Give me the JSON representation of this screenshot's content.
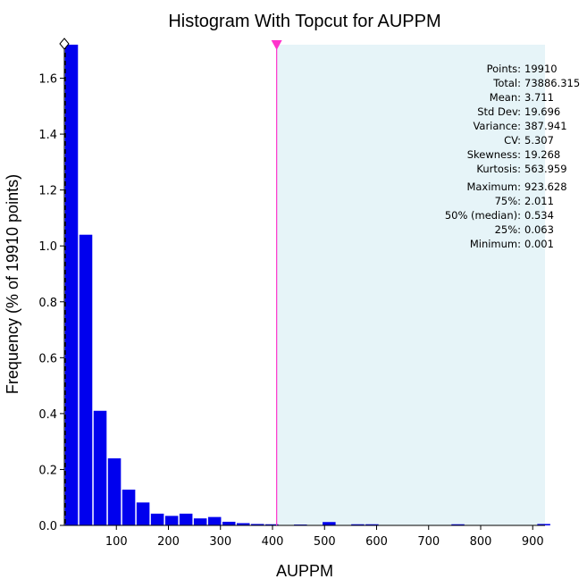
{
  "chart_data": {
    "type": "bar",
    "title": "Histogram With Topcut for AUPPM",
    "xlabel": "AUPPM",
    "ylabel": "Frequency (% of 19910 points)",
    "xlim": [
      0,
      923.628
    ],
    "ylim": [
      0,
      1.72
    ],
    "x_ticks": [
      100,
      200,
      300,
      400,
      500,
      600,
      700,
      800,
      900
    ],
    "y_ticks": [
      0.0,
      0.2,
      0.4,
      0.6,
      0.8,
      1.0,
      1.2,
      1.4,
      1.6
    ],
    "y_tick_labels": [
      "0.0",
      "0.2",
      "0.4",
      "0.6",
      "0.8",
      "1.0",
      "1.2",
      "1.4",
      "1.6"
    ],
    "bin_width": 27.5,
    "bins": [
      {
        "x0": 0,
        "value": 1.72
      },
      {
        "x0": 27.5,
        "value": 1.04
      },
      {
        "x0": 55,
        "value": 0.41
      },
      {
        "x0": 82.5,
        "value": 0.24
      },
      {
        "x0": 110,
        "value": 0.128
      },
      {
        "x0": 137.5,
        "value": 0.082
      },
      {
        "x0": 165,
        "value": 0.042
      },
      {
        "x0": 192.5,
        "value": 0.034
      },
      {
        "x0": 220,
        "value": 0.042
      },
      {
        "x0": 247.5,
        "value": 0.025
      },
      {
        "x0": 275,
        "value": 0.03
      },
      {
        "x0": 302.5,
        "value": 0.013
      },
      {
        "x0": 330,
        "value": 0.008
      },
      {
        "x0": 357.5,
        "value": 0.005
      },
      {
        "x0": 385,
        "value": 0.004
      },
      {
        "x0": 440,
        "value": 0.003
      },
      {
        "x0": 495,
        "value": 0.012
      },
      {
        "x0": 550,
        "value": 0.004
      },
      {
        "x0": 577.5,
        "value": 0.004
      },
      {
        "x0": 742.5,
        "value": 0.004
      },
      {
        "x0": 907.5,
        "value": 0.005
      }
    ],
    "topcut": 408,
    "bar_color": "#0000ee",
    "topcut_line_color": "#ff33cc",
    "topcut_region_color": "#e6f4f8",
    "stats": [
      {
        "label": "Points:",
        "value": "19910",
        "color": "#000000"
      },
      {
        "label": "Total:",
        "value": "73886.315",
        "color": "#000000"
      },
      {
        "label": "Mean:",
        "value": "3.711",
        "color": "#ee0000"
      },
      {
        "label": "Std Dev:",
        "value": "19.696",
        "color": "#000000"
      },
      {
        "label": "Variance:",
        "value": "387.941",
        "color": "#000000"
      },
      {
        "label": "CV:",
        "value": "5.307",
        "color": "#000000"
      },
      {
        "label": "Skewness:",
        "value": "19.268",
        "color": "#000000"
      },
      {
        "label": "Kurtosis:",
        "value": "563.959",
        "color": "#000000"
      },
      {
        "label": "Maximum:",
        "value": "923.628",
        "color": "#000000"
      },
      {
        "label": "75%:",
        "value": "2.011",
        "color": "#0000cc"
      },
      {
        "label": "50% (median):",
        "value": "0.534",
        "color": "#0000cc"
      },
      {
        "label": "25%:",
        "value": "0.063",
        "color": "#0000cc"
      },
      {
        "label": "Minimum:",
        "value": "0.001",
        "color": "#000000"
      }
    ]
  }
}
